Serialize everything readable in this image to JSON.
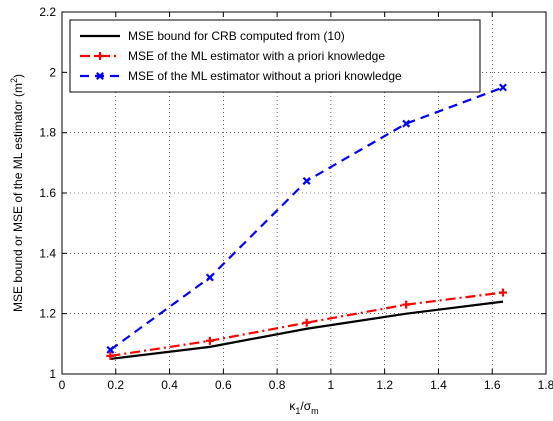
{
  "chart_data": {
    "type": "line",
    "title": "",
    "xlabel": {
      "base": "κ",
      "sub1": "1",
      "slash": "/σ",
      "sub2": "m"
    },
    "ylabel": {
      "main": "MSE bound or MSE of the ML estimator (m",
      "sup": "2",
      "close": ")"
    },
    "xlim": [
      0,
      1.8
    ],
    "ylim": [
      1,
      2.2
    ],
    "xticks": [
      0,
      0.2,
      0.4,
      0.6,
      0.8,
      1,
      1.2,
      1.4,
      1.6,
      1.8
    ],
    "xtick_labels": [
      "0",
      "0.2",
      "0.4",
      "0.6",
      "0.8",
      "1",
      "1.2",
      "1.4",
      "1.6",
      "1.8"
    ],
    "yticks": [
      1,
      1.2,
      1.4,
      1.6,
      1.8,
      2,
      2.2
    ],
    "ytick_labels": [
      "1",
      "1.2",
      "1.4",
      "1.6",
      "1.8",
      "2",
      "2.2"
    ],
    "grid": true,
    "legend_position": "top-left",
    "series": [
      {
        "name": "MSE bound for CRB computed from (10)",
        "color": "#000000",
        "line_style": "solid",
        "marker": "none",
        "x": [
          0.18,
          0.55,
          0.91,
          1.28,
          1.64
        ],
        "y": [
          1.05,
          1.09,
          1.15,
          1.2,
          1.24
        ]
      },
      {
        "name": "MSE of the ML estimator with a priori knowledge",
        "color": "#ff0000",
        "line_style": "dash-dot",
        "marker": "plus",
        "x": [
          0.18,
          0.55,
          0.91,
          1.28,
          1.64
        ],
        "y": [
          1.06,
          1.11,
          1.17,
          1.23,
          1.27
        ]
      },
      {
        "name": "MSE of the ML estimator without a priori knowledge",
        "color": "#0000ff",
        "line_style": "dashed",
        "marker": "x",
        "x": [
          0.18,
          0.55,
          0.91,
          1.28,
          1.64
        ],
        "y": [
          1.08,
          1.32,
          1.64,
          1.83,
          1.95
        ]
      }
    ]
  }
}
